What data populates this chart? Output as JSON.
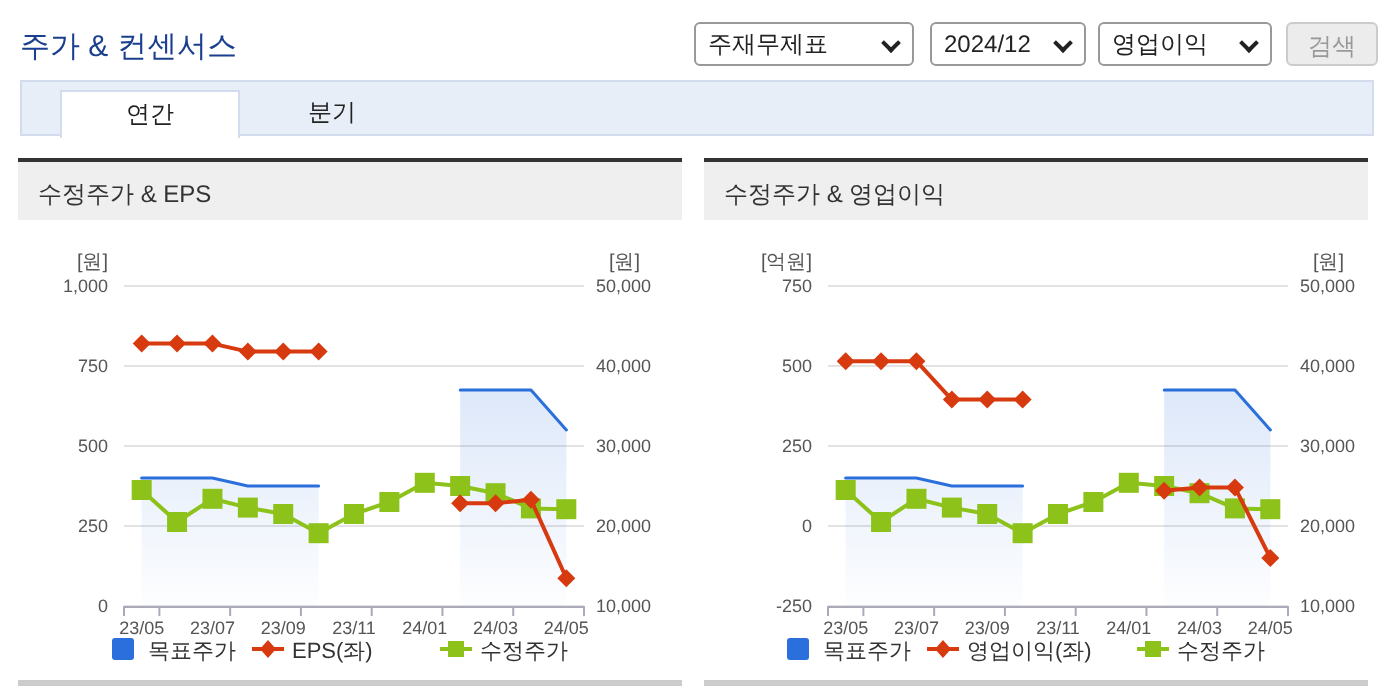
{
  "chart_data": [
    {
      "type": "other",
      "title": "주가 & 컨센서스",
      "annotations": [
        "주재무제표",
        "2024/12",
        "영업이익",
        "검색",
        "연간",
        "분기"
      ]
    },
    {
      "type": "line",
      "title": "수정주가 & EPS",
      "ylabel": "[원]",
      "y2label": "[원]",
      "categories": [
        "23/05",
        null,
        "23/07",
        null,
        "23/09",
        null,
        "23/11",
        null,
        "24/01",
        null,
        "24/03",
        null,
        "24/05"
      ],
      "ylim": [
        0,
        1000
      ],
      "yticks": [
        0,
        250,
        500,
        750,
        {
          "value": 1000,
          "label": "1,000"
        }
      ],
      "y2lim": [
        10000,
        50000
      ],
      "y2ticks": [
        {
          "value": 10000,
          "label": "10,000"
        },
        {
          "value": 20000,
          "label": "20,000"
        },
        {
          "value": 30000,
          "label": "30,000"
        },
        {
          "value": 40000,
          "label": "40,000"
        },
        {
          "value": 50000,
          "label": "50,000"
        }
      ],
      "grid": "y",
      "legend": "bottom",
      "series": [
        {
          "name": "목표주가",
          "type": "area",
          "axis": "y2",
          "color": "#2a6fdb",
          "values": [
            26000,
            26000,
            26000,
            25000,
            25000,
            25000,
            null,
            null,
            null,
            37000,
            37000,
            37000,
            32000
          ]
        },
        {
          "name": "EPS(좌)",
          "type": "line",
          "marker": "diamond",
          "color": "#d83a0f",
          "values": [
            820,
            820,
            820,
            795,
            795,
            795,
            null,
            null,
            null,
            321,
            321,
            332,
            87
          ]
        },
        {
          "name": "수정주가",
          "type": "line",
          "axis": "y2",
          "marker": "square",
          "color": "#8cc21a",
          "values": [
            24500,
            20500,
            23400,
            22300,
            21500,
            19100,
            21500,
            23000,
            25400,
            25000,
            24100,
            22200,
            22100
          ]
        }
      ]
    },
    {
      "type": "line",
      "title": "수정주가 & 영업이익",
      "ylabel": "[억원]",
      "y2label": "[원]",
      "categories": [
        "23/05",
        null,
        "23/07",
        null,
        "23/09",
        null,
        "23/11",
        null,
        "24/01",
        null,
        "24/03",
        null,
        "24/05"
      ],
      "ylim": [
        -250,
        750
      ],
      "yticks": [
        -250,
        0,
        250,
        500,
        750
      ],
      "y2lim": [
        10000,
        50000
      ],
      "y2ticks": [
        {
          "value": 10000,
          "label": "10,000"
        },
        {
          "value": 20000,
          "label": "20,000"
        },
        {
          "value": 30000,
          "label": "30,000"
        },
        {
          "value": 40000,
          "label": "40,000"
        },
        {
          "value": 50000,
          "label": "50,000"
        }
      ],
      "grid": "y",
      "legend": "bottom",
      "series": [
        {
          "name": "목표주가",
          "type": "area",
          "axis": "y2",
          "color": "#2a6fdb",
          "values": [
            26000,
            26000,
            26000,
            25000,
            25000,
            25000,
            null,
            null,
            null,
            37000,
            37000,
            37000,
            32000
          ]
        },
        {
          "name": "영업이익(좌)",
          "type": "line",
          "marker": "diamond",
          "color": "#d83a0f",
          "values": [
            515,
            515,
            515,
            395,
            395,
            395,
            null,
            null,
            null,
            110,
            120,
            120,
            -100
          ]
        },
        {
          "name": "수정주가",
          "type": "line",
          "axis": "y2",
          "marker": "square",
          "color": "#8cc21a",
          "values": [
            24500,
            20500,
            23400,
            22300,
            21500,
            19100,
            21500,
            23000,
            25400,
            25000,
            24100,
            22200,
            22100
          ]
        }
      ]
    }
  ]
}
